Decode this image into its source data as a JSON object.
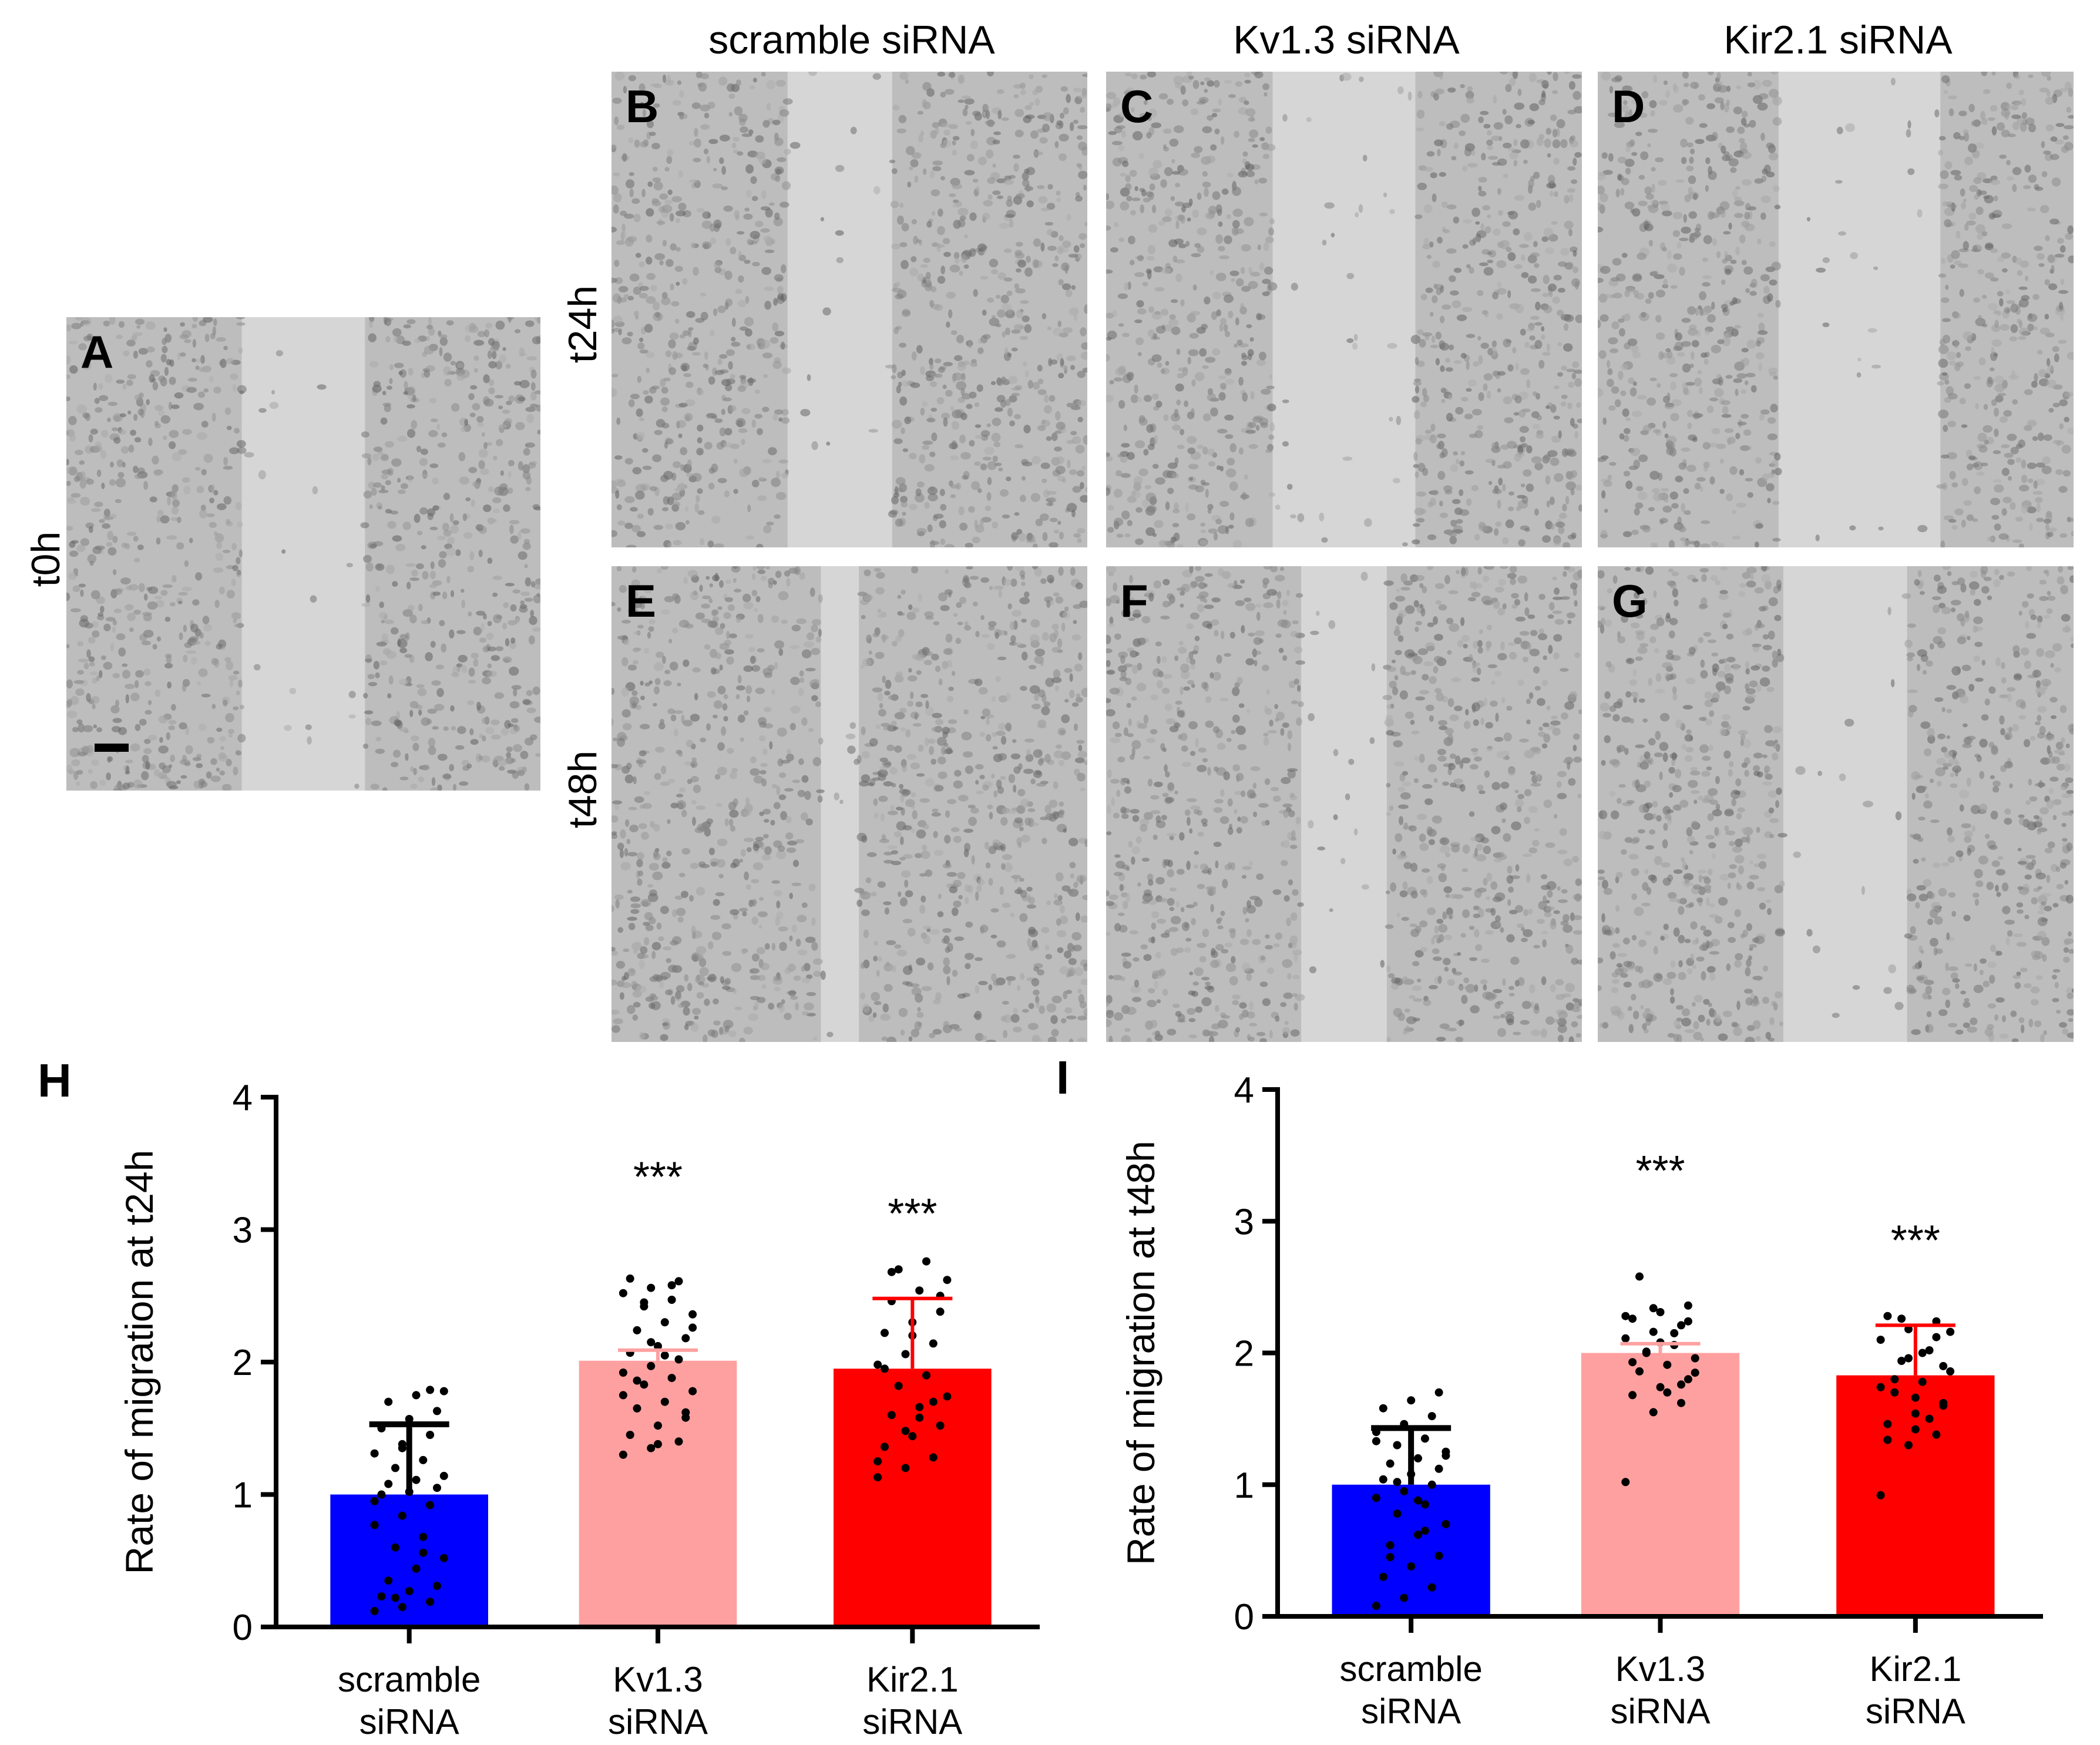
{
  "micrographs": {
    "column_titles": [
      "scramble siRNA",
      "Kv1.3 siRNA",
      "Kir2.1 siRNA"
    ],
    "row_labels": {
      "t0": "t0h",
      "t24": "t24h",
      "t48": "t48h"
    },
    "panels": [
      {
        "letter": "A",
        "time": "t0h",
        "condition": "",
        "scale_bar": true
      },
      {
        "letter": "B",
        "time": "t24h",
        "condition": "scramble siRNA"
      },
      {
        "letter": "C",
        "time": "t24h",
        "condition": "Kv1.3 siRNA"
      },
      {
        "letter": "D",
        "time": "t24h",
        "condition": "Kir2.1 siRNA"
      },
      {
        "letter": "E",
        "time": "t48h",
        "condition": "scramble siRNA"
      },
      {
        "letter": "F",
        "time": "t48h",
        "condition": "Kv1.3 siRNA"
      },
      {
        "letter": "G",
        "time": "t48h",
        "condition": "Kir2.1 siRNA"
      }
    ]
  },
  "chart_data": [
    {
      "panel": "H",
      "type": "bar",
      "ylabel": "Rate of migration at t24h",
      "ylim": [
        0,
        4
      ],
      "yticks": [
        0,
        1,
        2,
        3,
        4
      ],
      "categories": [
        [
          "scramble",
          "siRNA"
        ],
        [
          "Kv1.3",
          "siRNA"
        ],
        [
          "Kir2.1",
          "siRNA"
        ]
      ],
      "values": [
        1.0,
        2.01,
        1.95
      ],
      "error_bars": [
        0.53,
        0.08,
        0.53
      ],
      "bar_colors": [
        "#0000ff",
        "#ffa0a0",
        "#ff0000"
      ],
      "error_colors": [
        "#000000",
        "#ffa0a0",
        "#ff0000"
      ],
      "significance": [
        "",
        "***",
        "***"
      ],
      "points": [
        [
          0.12,
          0.15,
          0.19,
          0.23,
          0.27,
          0.31,
          0.35,
          0.44,
          0.52,
          0.6,
          0.68,
          0.77,
          0.84,
          0.92,
          1.0,
          1.02,
          1.05,
          1.08,
          1.11,
          1.14,
          1.2,
          1.26,
          1.31,
          1.38,
          1.45,
          1.5,
          1.57,
          1.63,
          1.7,
          1.75,
          1.78,
          0.22,
          0.56,
          0.95,
          1.35,
          1.79
        ],
        [
          1.3,
          1.35,
          1.4,
          1.45,
          1.52,
          1.58,
          1.65,
          1.7,
          1.78,
          1.83,
          1.88,
          1.92,
          1.97,
          2.02,
          2.07,
          2.12,
          2.18,
          2.24,
          2.3,
          2.36,
          2.42,
          2.47,
          2.52,
          2.56,
          2.61,
          2.63,
          1.38,
          1.62,
          1.86,
          2.05,
          2.26,
          2.45,
          2.58,
          1.75,
          2.15
        ],
        [
          1.13,
          1.2,
          1.28,
          1.36,
          1.44,
          1.52,
          1.6,
          1.66,
          1.74,
          1.82,
          1.9,
          1.98,
          2.06,
          2.14,
          2.22,
          2.3,
          2.38,
          2.46,
          2.54,
          2.62,
          2.7,
          2.76,
          1.25,
          1.48,
          1.7,
          1.95,
          2.2,
          2.5,
          2.68,
          1.58
        ]
      ]
    },
    {
      "panel": "I",
      "type": "bar",
      "ylabel": "Rate of migration at t48h",
      "ylim": [
        0,
        4
      ],
      "yticks": [
        0,
        1,
        2,
        3,
        4
      ],
      "categories": [
        [
          "scramble",
          "siRNA"
        ],
        [
          "Kv1.3",
          "siRNA"
        ],
        [
          "Kir2.1",
          "siRNA"
        ]
      ],
      "values": [
        1.0,
        2.0,
        1.83
      ],
      "error_bars": [
        0.43,
        0.07,
        0.38
      ],
      "bar_colors": [
        "#0000ff",
        "#ffa0a0",
        "#ff0000"
      ],
      "error_colors": [
        "#000000",
        "#ffa0a0",
        "#ff0000"
      ],
      "significance": [
        "",
        "***",
        "***"
      ],
      "points": [
        [
          0.08,
          0.14,
          0.22,
          0.3,
          0.38,
          0.46,
          0.54,
          0.62,
          0.7,
          0.78,
          0.85,
          0.9,
          0.95,
          1.0,
          1.04,
          1.08,
          1.12,
          1.16,
          1.2,
          1.25,
          1.3,
          1.35,
          1.4,
          1.46,
          1.52,
          1.58,
          1.64,
          1.7,
          0.45,
          0.88,
          1.22,
          1.02,
          0.65,
          1.33
        ],
        [
          1.02,
          1.55,
          1.62,
          1.68,
          1.74,
          1.8,
          1.86,
          1.91,
          1.96,
          2.01,
          2.06,
          2.11,
          2.16,
          2.21,
          2.26,
          2.31,
          2.36,
          2.58,
          1.7,
          1.85,
          2.0,
          2.15,
          2.28,
          2.34,
          1.76,
          1.93,
          2.08,
          2.24
        ],
        [
          0.92,
          1.3,
          1.38,
          1.46,
          1.54,
          1.62,
          1.7,
          1.78,
          1.86,
          1.94,
          2.02,
          2.1,
          2.18,
          2.24,
          2.28,
          1.42,
          1.6,
          1.8,
          2.0,
          2.16,
          2.26,
          1.5,
          1.74,
          1.96,
          2.12,
          1.34,
          1.66,
          1.9
        ]
      ]
    }
  ]
}
